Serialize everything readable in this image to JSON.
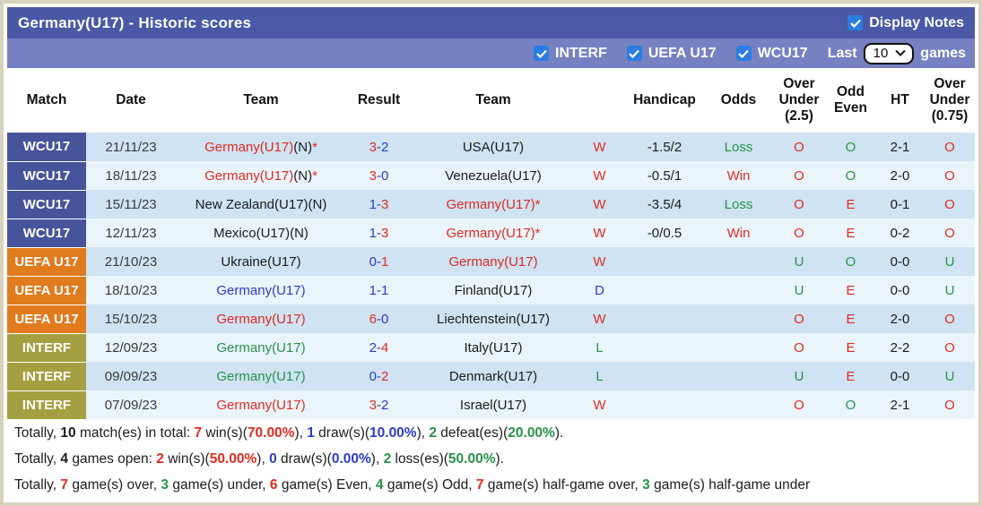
{
  "palette": {
    "frame": "#d8d2bd",
    "header_bg": "#4a58a5",
    "toolbar_bg": "#7681c2",
    "checkbox": "#2a7de1",
    "badge_wcu17": "#47549b",
    "badge_uefa": "#e07b1e",
    "badge_interf": "#a4a041",
    "row_odd": "#cfe3f3",
    "row_even": "#eaf4fb",
    "red": "#e02b20",
    "blue": "#2b3cc8",
    "green": "#279347",
    "black": "#1c1c1c"
  },
  "header": {
    "title": "Germany(U17) - Historic scores",
    "display_notes": "Display Notes",
    "filters": [
      {
        "label": "INTERF",
        "checked": true
      },
      {
        "label": "UEFA U17",
        "checked": true
      },
      {
        "label": "WCU17",
        "checked": true
      }
    ],
    "last_label": "Last",
    "last_value": "10",
    "games_label": "games"
  },
  "table": {
    "columns": [
      "Match",
      "Date",
      "Team",
      "Result",
      "Team",
      "",
      "Handicap",
      "Odds",
      "Over\nUnder\n(2.5)",
      "Odd\nEven",
      "HT",
      "Over\nUnder\n(0.75)"
    ],
    "rows": [
      {
        "league": "WCU17",
        "league_key": "wcu17",
        "date": "21/11/23",
        "home": {
          "name": "Germany(U17)",
          "mid": "(N)",
          "star": "*",
          "color": "red"
        },
        "result": {
          "home": "3",
          "away": "2",
          "home_color": "red",
          "away_color": "blue"
        },
        "away": {
          "name": "USA(U17)",
          "mid": "",
          "star": "",
          "color": "black"
        },
        "wdl": {
          "t": "W",
          "c": "red"
        },
        "handicap": "-1.5/2",
        "odds": {
          "t": "Loss",
          "c": "green"
        },
        "ou25": {
          "t": "O",
          "c": "red"
        },
        "odd_even": {
          "t": "O",
          "c": "green"
        },
        "ht": "2-1",
        "ou075": {
          "t": "O",
          "c": "red"
        }
      },
      {
        "league": "WCU17",
        "league_key": "wcu17",
        "date": "18/11/23",
        "home": {
          "name": "Germany(U17)",
          "mid": "(N)",
          "star": "*",
          "color": "red"
        },
        "result": {
          "home": "3",
          "away": "0",
          "home_color": "red",
          "away_color": "blue"
        },
        "away": {
          "name": "Venezuela(U17)",
          "mid": "",
          "star": "",
          "color": "black"
        },
        "wdl": {
          "t": "W",
          "c": "red"
        },
        "handicap": "-0.5/1",
        "odds": {
          "t": "Win",
          "c": "red"
        },
        "ou25": {
          "t": "O",
          "c": "red"
        },
        "odd_even": {
          "t": "O",
          "c": "green"
        },
        "ht": "2-0",
        "ou075": {
          "t": "O",
          "c": "red"
        }
      },
      {
        "league": "WCU17",
        "league_key": "wcu17",
        "date": "15/11/23",
        "home": {
          "name": "New Zealand(U17)(N)",
          "mid": "",
          "star": "",
          "color": "black"
        },
        "result": {
          "home": "1",
          "away": "3",
          "home_color": "blue",
          "away_color": "red"
        },
        "away": {
          "name": "Germany(U17)",
          "mid": "",
          "star": "*",
          "color": "red"
        },
        "wdl": {
          "t": "W",
          "c": "red"
        },
        "handicap": "-3.5/4",
        "odds": {
          "t": "Loss",
          "c": "green"
        },
        "ou25": {
          "t": "O",
          "c": "red"
        },
        "odd_even": {
          "t": "E",
          "c": "red"
        },
        "ht": "0-1",
        "ou075": {
          "t": "O",
          "c": "red"
        }
      },
      {
        "league": "WCU17",
        "league_key": "wcu17",
        "date": "12/11/23",
        "home": {
          "name": "Mexico(U17)(N)",
          "mid": "",
          "star": "",
          "color": "black"
        },
        "result": {
          "home": "1",
          "away": "3",
          "home_color": "blue",
          "away_color": "red"
        },
        "away": {
          "name": "Germany(U17)",
          "mid": "",
          "star": "*",
          "color": "red"
        },
        "wdl": {
          "t": "W",
          "c": "red"
        },
        "handicap": "-0/0.5",
        "odds": {
          "t": "Win",
          "c": "red"
        },
        "ou25": {
          "t": "O",
          "c": "red"
        },
        "odd_even": {
          "t": "E",
          "c": "red"
        },
        "ht": "0-2",
        "ou075": {
          "t": "O",
          "c": "red"
        }
      },
      {
        "league": "UEFA U17",
        "league_key": "uefa",
        "date": "21/10/23",
        "home": {
          "name": "Ukraine(U17)",
          "mid": "",
          "star": "",
          "color": "black"
        },
        "result": {
          "home": "0",
          "away": "1",
          "home_color": "blue",
          "away_color": "red"
        },
        "away": {
          "name": "Germany(U17)",
          "mid": "",
          "star": "",
          "color": "red"
        },
        "wdl": {
          "t": "W",
          "c": "red"
        },
        "handicap": "",
        "odds": {
          "t": "",
          "c": "black"
        },
        "ou25": {
          "t": "U",
          "c": "green"
        },
        "odd_even": {
          "t": "O",
          "c": "green"
        },
        "ht": "0-0",
        "ou075": {
          "t": "U",
          "c": "green"
        }
      },
      {
        "league": "UEFA U17",
        "league_key": "uefa",
        "date": "18/10/23",
        "home": {
          "name": "Germany(U17)",
          "mid": "",
          "star": "",
          "color": "blue"
        },
        "result": {
          "home": "1",
          "away": "1",
          "home_color": "blue",
          "away_color": "blue"
        },
        "away": {
          "name": "Finland(U17)",
          "mid": "",
          "star": "",
          "color": "black"
        },
        "wdl": {
          "t": "D",
          "c": "blue"
        },
        "handicap": "",
        "odds": {
          "t": "",
          "c": "black"
        },
        "ou25": {
          "t": "U",
          "c": "green"
        },
        "odd_even": {
          "t": "E",
          "c": "red"
        },
        "ht": "0-0",
        "ou075": {
          "t": "U",
          "c": "green"
        }
      },
      {
        "league": "UEFA U17",
        "league_key": "uefa",
        "date": "15/10/23",
        "home": {
          "name": "Germany(U17)",
          "mid": "",
          "star": "",
          "color": "red"
        },
        "result": {
          "home": "6",
          "away": "0",
          "home_color": "red",
          "away_color": "blue"
        },
        "away": {
          "name": "Liechtenstein(U17)",
          "mid": "",
          "star": "",
          "color": "black"
        },
        "wdl": {
          "t": "W",
          "c": "red"
        },
        "handicap": "",
        "odds": {
          "t": "",
          "c": "black"
        },
        "ou25": {
          "t": "O",
          "c": "red"
        },
        "odd_even": {
          "t": "E",
          "c": "red"
        },
        "ht": "2-0",
        "ou075": {
          "t": "O",
          "c": "red"
        }
      },
      {
        "league": "INTERF",
        "league_key": "interf",
        "date": "12/09/23",
        "home": {
          "name": "Germany(U17)",
          "mid": "",
          "star": "",
          "color": "green"
        },
        "result": {
          "home": "2",
          "away": "4",
          "home_color": "blue",
          "away_color": "red"
        },
        "away": {
          "name": "Italy(U17)",
          "mid": "",
          "star": "",
          "color": "black"
        },
        "wdl": {
          "t": "L",
          "c": "green"
        },
        "handicap": "",
        "odds": {
          "t": "",
          "c": "black"
        },
        "ou25": {
          "t": "O",
          "c": "red"
        },
        "odd_even": {
          "t": "E",
          "c": "red"
        },
        "ht": "2-2",
        "ou075": {
          "t": "O",
          "c": "red"
        }
      },
      {
        "league": "INTERF",
        "league_key": "interf",
        "date": "09/09/23",
        "home": {
          "name": "Germany(U17)",
          "mid": "",
          "star": "",
          "color": "green"
        },
        "result": {
          "home": "0",
          "away": "2",
          "home_color": "blue",
          "away_color": "red"
        },
        "away": {
          "name": "Denmark(U17)",
          "mid": "",
          "star": "",
          "color": "black"
        },
        "wdl": {
          "t": "L",
          "c": "green"
        },
        "handicap": "",
        "odds": {
          "t": "",
          "c": "black"
        },
        "ou25": {
          "t": "U",
          "c": "green"
        },
        "odd_even": {
          "t": "E",
          "c": "red"
        },
        "ht": "0-0",
        "ou075": {
          "t": "U",
          "c": "green"
        }
      },
      {
        "league": "INTERF",
        "league_key": "interf",
        "date": "07/09/23",
        "home": {
          "name": "Germany(U17)",
          "mid": "",
          "star": "",
          "color": "red"
        },
        "result": {
          "home": "3",
          "away": "2",
          "home_color": "red",
          "away_color": "blue"
        },
        "away": {
          "name": "Israel(U17)",
          "mid": "",
          "star": "",
          "color": "black"
        },
        "wdl": {
          "t": "W",
          "c": "red"
        },
        "handicap": "",
        "odds": {
          "t": "",
          "c": "black"
        },
        "ou25": {
          "t": "O",
          "c": "red"
        },
        "odd_even": {
          "t": "O",
          "c": "green"
        },
        "ht": "2-1",
        "ou075": {
          "t": "O",
          "c": "red"
        }
      }
    ]
  },
  "summary": [
    [
      {
        "t": "Totally, ",
        "c": "black"
      },
      {
        "t": "10",
        "c": "black",
        "f": 1
      },
      {
        "t": " match(es) in total: ",
        "c": "black"
      },
      {
        "t": "7",
        "c": "red",
        "f": 1
      },
      {
        "t": " win(s)(",
        "c": "black"
      },
      {
        "t": "70.00%",
        "c": "red",
        "f": 1
      },
      {
        "t": "), ",
        "c": "black"
      },
      {
        "t": "1",
        "c": "blue",
        "f": 1
      },
      {
        "t": " draw(s)(",
        "c": "black"
      },
      {
        "t": "10.00%",
        "c": "blue",
        "f": 1
      },
      {
        "t": "), ",
        "c": "black"
      },
      {
        "t": "2",
        "c": "green",
        "f": 1
      },
      {
        "t": " defeat(es)(",
        "c": "black"
      },
      {
        "t": "20.00%",
        "c": "green",
        "f": 1
      },
      {
        "t": ").",
        "c": "black"
      }
    ],
    [
      {
        "t": "Totally, ",
        "c": "black"
      },
      {
        "t": "4",
        "c": "black",
        "f": 1
      },
      {
        "t": " games open: ",
        "c": "black"
      },
      {
        "t": "2",
        "c": "red",
        "f": 1
      },
      {
        "t": " win(s)(",
        "c": "black"
      },
      {
        "t": "50.00%",
        "c": "red",
        "f": 1
      },
      {
        "t": "), ",
        "c": "black"
      },
      {
        "t": "0",
        "c": "blue",
        "f": 1
      },
      {
        "t": " draw(s)(",
        "c": "black"
      },
      {
        "t": "0.00%",
        "c": "blue",
        "f": 1
      },
      {
        "t": "), ",
        "c": "black"
      },
      {
        "t": "2",
        "c": "green",
        "f": 1
      },
      {
        "t": " loss(es)(",
        "c": "black"
      },
      {
        "t": "50.00%",
        "c": "green",
        "f": 1
      },
      {
        "t": ").",
        "c": "black"
      }
    ],
    [
      {
        "t": "Totally, ",
        "c": "black"
      },
      {
        "t": "7",
        "c": "red",
        "f": 1
      },
      {
        "t": " game(s) over, ",
        "c": "black"
      },
      {
        "t": "3",
        "c": "green",
        "f": 1
      },
      {
        "t": " game(s) under, ",
        "c": "black"
      },
      {
        "t": "6",
        "c": "red",
        "f": 1
      },
      {
        "t": " game(s) Even, ",
        "c": "black"
      },
      {
        "t": "4",
        "c": "green",
        "f": 1
      },
      {
        "t": " game(s) Odd, ",
        "c": "black"
      },
      {
        "t": "7",
        "c": "red",
        "f": 1
      },
      {
        "t": " game(s) half-game over, ",
        "c": "black"
      },
      {
        "t": "3",
        "c": "green",
        "f": 1
      },
      {
        "t": " game(s) half-game under",
        "c": "black"
      }
    ]
  ]
}
